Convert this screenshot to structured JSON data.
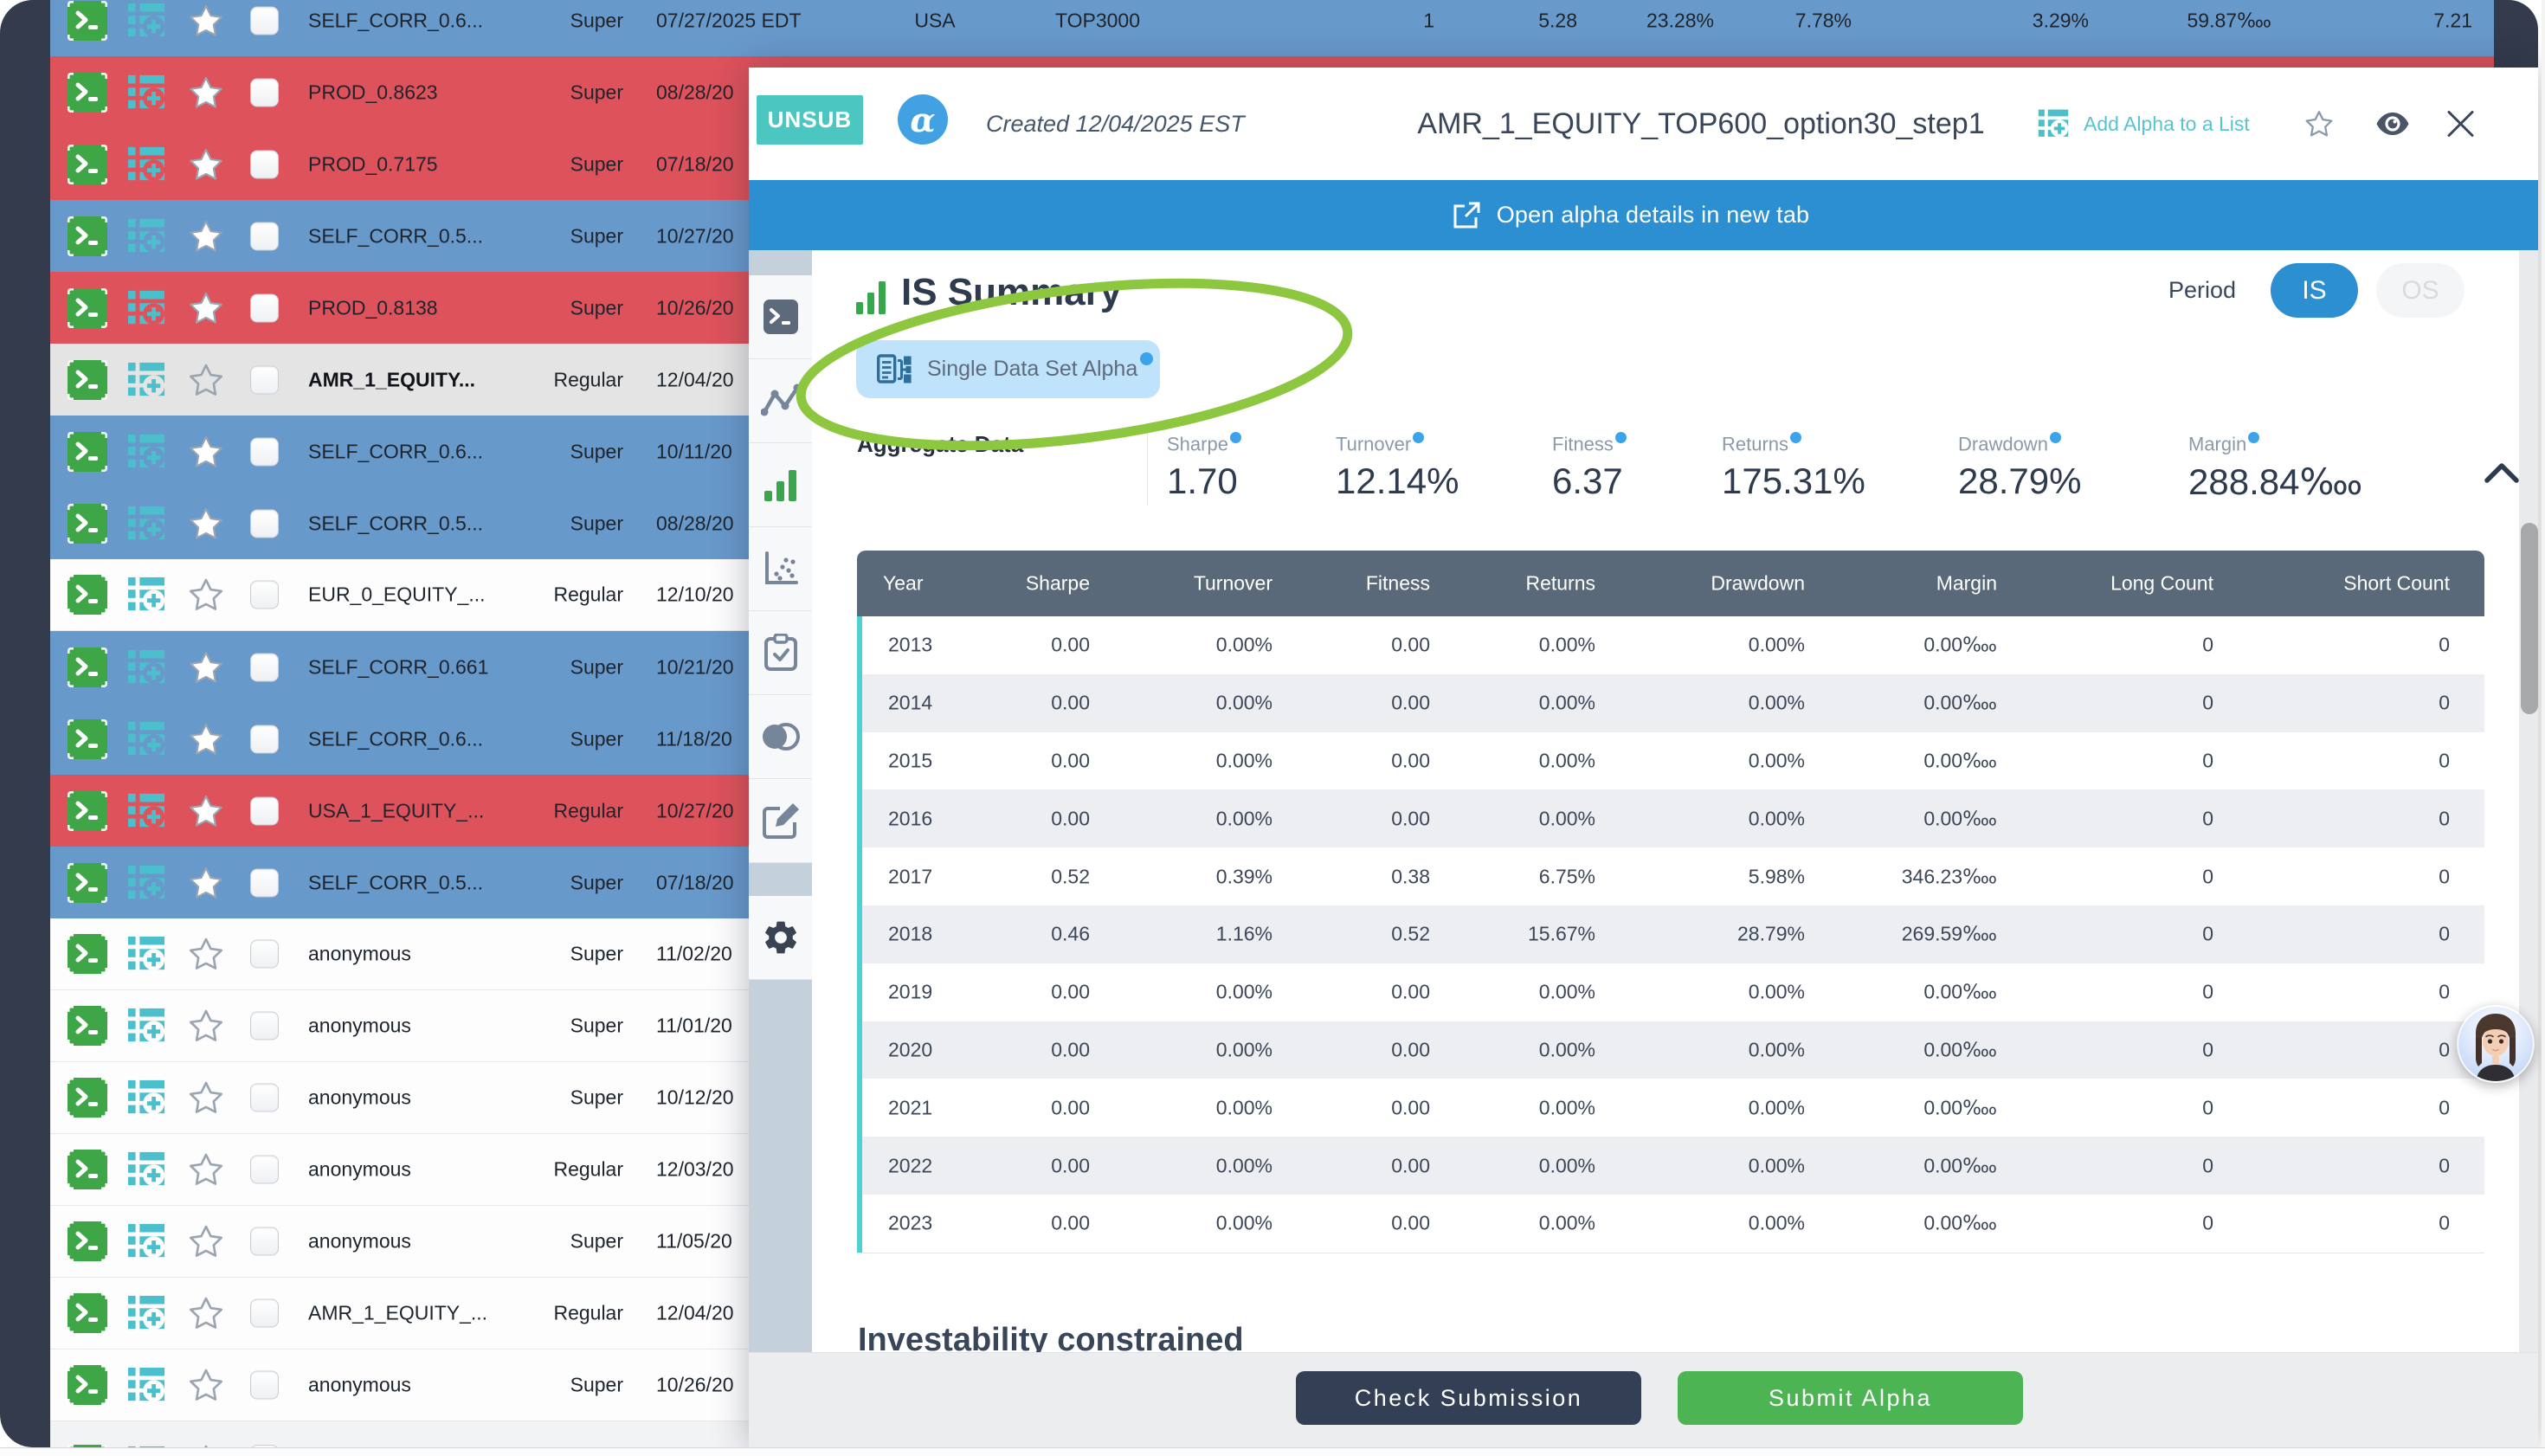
{
  "alpha_table": {
    "rows": [
      {
        "name": "SELF_CORR_0.6...",
        "type": "Super",
        "date": "07/27/2025 EDT",
        "color": "blue",
        "star": "filled",
        "extras": [
          "USA",
          "TOP3000",
          "1",
          "5.28",
          "23.28%",
          "7.78%",
          "3.29%",
          "59.87‱",
          "7.21"
        ]
      },
      {
        "name": "PROD_0.8623",
        "type": "Super",
        "date": "08/28/20",
        "color": "red",
        "star": "filled"
      },
      {
        "name": "PROD_0.7175",
        "type": "Super",
        "date": "07/18/20",
        "color": "red",
        "star": "filled"
      },
      {
        "name": "SELF_CORR_0.5...",
        "type": "Super",
        "date": "10/27/20",
        "color": "blue",
        "star": "filled"
      },
      {
        "name": "PROD_0.8138",
        "type": "Super",
        "date": "10/26/20",
        "color": "red",
        "star": "filled"
      },
      {
        "name": "AMR_1_EQUITY...",
        "type": "Regular",
        "date": "12/04/20",
        "color": "selected",
        "star": "outline"
      },
      {
        "name": "SELF_CORR_0.6...",
        "type": "Super",
        "date": "10/11/20",
        "color": "blue",
        "star": "filled"
      },
      {
        "name": "SELF_CORR_0.5...",
        "type": "Super",
        "date": "08/28/20",
        "color": "blue",
        "star": "filled"
      },
      {
        "name": "EUR_0_EQUITY_...",
        "type": "Regular",
        "date": "12/10/20",
        "color": "white",
        "star": "outline"
      },
      {
        "name": "SELF_CORR_0.661",
        "type": "Super",
        "date": "10/21/20",
        "color": "blue",
        "star": "filled"
      },
      {
        "name": "SELF_CORR_0.6...",
        "type": "Super",
        "date": "11/18/20",
        "color": "blue",
        "star": "filled"
      },
      {
        "name": "USA_1_EQUITY_...",
        "type": "Regular",
        "date": "10/27/20",
        "color": "red",
        "star": "filled"
      },
      {
        "name": "SELF_CORR_0.5...",
        "type": "Super",
        "date": "07/18/20",
        "color": "blue",
        "star": "filled"
      },
      {
        "name": "anonymous",
        "type": "Super",
        "date": "11/02/20",
        "color": "white",
        "star": "outline"
      },
      {
        "name": "anonymous",
        "type": "Super",
        "date": "11/01/20",
        "color": "white",
        "star": "outline"
      },
      {
        "name": "anonymous",
        "type": "Super",
        "date": "10/12/20",
        "color": "white",
        "star": "outline"
      },
      {
        "name": "anonymous",
        "type": "Regular",
        "date": "12/03/20",
        "color": "white",
        "star": "outline"
      },
      {
        "name": "anonymous",
        "type": "Super",
        "date": "11/05/20",
        "color": "white",
        "star": "outline"
      },
      {
        "name": "AMR_1_EQUITY_...",
        "type": "Regular",
        "date": "12/04/20",
        "color": "white",
        "star": "outline"
      },
      {
        "name": "anonymous",
        "type": "Super",
        "date": "10/26/20",
        "color": "white",
        "star": "outline"
      },
      {
        "name": "",
        "type": "",
        "date": "",
        "color": "grayed",
        "star": "outline"
      }
    ]
  },
  "modal": {
    "unsub_label": "UNSUB",
    "logo_char": "α",
    "created": "Created 12/04/2025 EST",
    "title": "AMR_1_EQUITY_TOP600_option30_step1",
    "add_to_list_label": "Add Alpha to a List",
    "banner_label": "Open alpha details in new tab",
    "section_title": "IS Summary",
    "classification_chip": "Single Data Set Alpha",
    "period": {
      "label": "Period",
      "selected": "IS",
      "options": [
        "IS",
        "OS"
      ]
    },
    "aggregate": {
      "label": "Aggregate Data",
      "metrics": [
        {
          "label": "Sharpe",
          "value": "1.70"
        },
        {
          "label": "Turnover",
          "value": "12.14%"
        },
        {
          "label": "Fitness",
          "value": "6.37"
        },
        {
          "label": "Returns",
          "value": "175.31%"
        },
        {
          "label": "Drawdown",
          "value": "28.79%"
        },
        {
          "label": "Margin",
          "value": "288.84‱"
        }
      ]
    },
    "year_table": {
      "headers": [
        "Year",
        "Sharpe",
        "Turnover",
        "Fitness",
        "Returns",
        "Drawdown",
        "Margin",
        "Long Count",
        "Short Count"
      ],
      "rows": [
        [
          "2013",
          "0.00",
          "0.00%",
          "0.00",
          "0.00%",
          "0.00%",
          "0.00‱",
          "0",
          "0"
        ],
        [
          "2014",
          "0.00",
          "0.00%",
          "0.00",
          "0.00%",
          "0.00%",
          "0.00‱",
          "0",
          "0"
        ],
        [
          "2015",
          "0.00",
          "0.00%",
          "0.00",
          "0.00%",
          "0.00%",
          "0.00‱",
          "0",
          "0"
        ],
        [
          "2016",
          "0.00",
          "0.00%",
          "0.00",
          "0.00%",
          "0.00%",
          "0.00‱",
          "0",
          "0"
        ],
        [
          "2017",
          "0.52",
          "0.39%",
          "0.38",
          "6.75%",
          "5.98%",
          "346.23‱",
          "0",
          "0"
        ],
        [
          "2018",
          "0.46",
          "1.16%",
          "0.52",
          "15.67%",
          "28.79%",
          "269.59‱",
          "0",
          "0"
        ],
        [
          "2019",
          "0.00",
          "0.00%",
          "0.00",
          "0.00%",
          "0.00%",
          "0.00‱",
          "0",
          "0"
        ],
        [
          "2020",
          "0.00",
          "0.00%",
          "0.00",
          "0.00%",
          "0.00%",
          "0.00‱",
          "0",
          "0"
        ],
        [
          "2021",
          "0.00",
          "0.00%",
          "0.00",
          "0.00%",
          "0.00%",
          "0.00‱",
          "0",
          "0"
        ],
        [
          "2022",
          "0.00",
          "0.00%",
          "0.00",
          "0.00%",
          "0.00%",
          "0.00‱",
          "0",
          "0"
        ],
        [
          "2023",
          "0.00",
          "0.00%",
          "0.00",
          "0.00%",
          "0.00%",
          "0.00‱",
          "0",
          "0"
        ]
      ]
    },
    "investability_heading": "Investability constrained",
    "check_button": "Check Submission",
    "submit_button": "Submit Alpha"
  },
  "colors": {
    "row_blue": "#6899cb",
    "row_red": "#de525c",
    "banner_blue": "#2b8fd2",
    "unsub_teal": "#4cc6c0",
    "submit_green": "#4cb452",
    "check_navy": "#333f54",
    "table_header": "#5a6979",
    "annotation_lime": "#8dc63f",
    "accent_teal_border": "#4fd0d5"
  }
}
